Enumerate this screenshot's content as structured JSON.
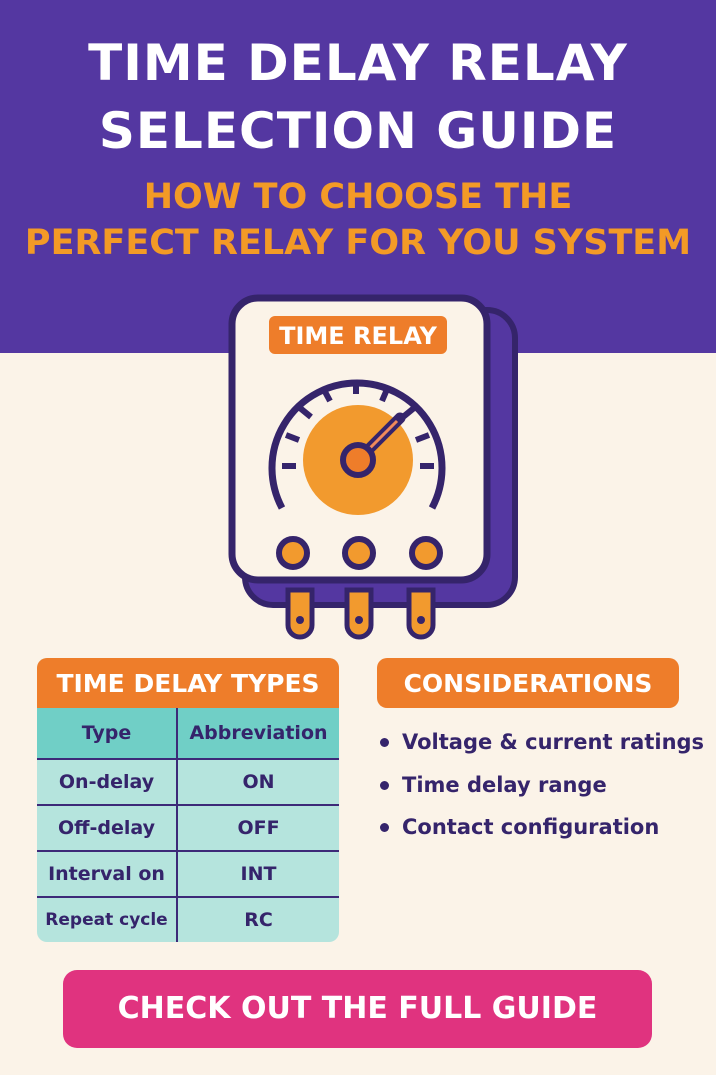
{
  "header": {
    "title_line1": "TIME DELAY RELAY",
    "title_line2": "SELECTION GUIDE",
    "subtitle_line1": "HOW TO CHOOSE THE",
    "subtitle_line2": "PERFECT RELAY FOR YOU SYSTEM"
  },
  "relay": {
    "label": "TIME RELAY"
  },
  "types_table": {
    "title": "TIME DELAY TYPES",
    "columns": [
      "Type",
      "Abbreviation"
    ],
    "rows": [
      [
        "On-delay",
        "ON"
      ],
      [
        "Off-delay",
        "OFF"
      ],
      [
        "Interval on",
        "INT"
      ],
      [
        "Repeat cycle",
        "RC"
      ]
    ]
  },
  "considerations": {
    "title": "CONSIDERATIONS",
    "items": [
      "Voltage & current ratings",
      "Time delay range",
      "Contact configuration"
    ]
  },
  "cta": {
    "label": "CHECK OUT THE FULL GUIDE"
  },
  "colors": {
    "purple": "#5437a1",
    "orange": "#ee7d2a",
    "teal": "#70cfc6",
    "pink": "#e0337f",
    "cream": "#fbf3e8"
  }
}
